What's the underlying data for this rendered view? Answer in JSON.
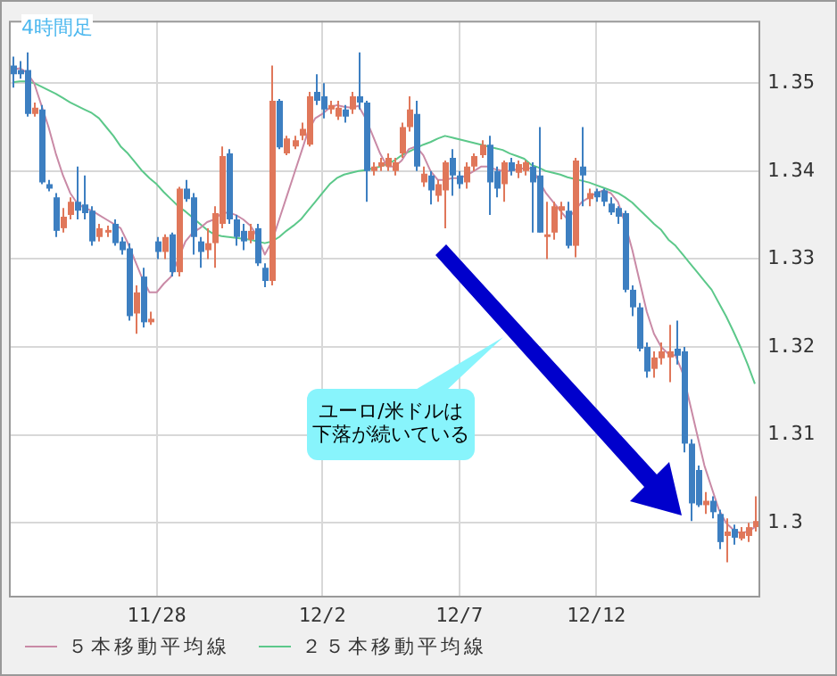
{
  "chart_data": {
    "type": "candlestick",
    "title": "4時間足",
    "categories": [
      null,
      null,
      null,
      null,
      null,
      null,
      null,
      null,
      null,
      null,
      null,
      null,
      null,
      null,
      null,
      null,
      null,
      null,
      null,
      null,
      "11/28",
      null,
      null,
      null,
      null,
      null,
      null,
      null,
      null,
      null,
      null,
      null,
      null,
      null,
      null,
      null,
      null,
      null,
      null,
      null,
      null,
      null,
      null,
      "12/2",
      null,
      null,
      null,
      null,
      null,
      null,
      null,
      null,
      null,
      null,
      null,
      null,
      null,
      null,
      null,
      null,
      null,
      null,
      "12/7",
      null,
      null,
      null,
      null,
      null,
      null,
      null,
      null,
      null,
      null,
      null,
      null,
      null,
      null,
      null,
      null,
      null,
      null,
      "12/12",
      null,
      null,
      null,
      null,
      null,
      null,
      null,
      null,
      null,
      null,
      null,
      null,
      null,
      null,
      null,
      null,
      null,
      null,
      null,
      null,
      null,
      null
    ],
    "ohlc": [
      [
        1.352,
        1.353,
        1.3495,
        1.351
      ],
      [
        1.3515,
        1.3525,
        1.3505,
        1.351
      ],
      [
        1.3515,
        1.3535,
        1.3462,
        1.3465
      ],
      [
        1.3465,
        1.3478,
        1.3462,
        1.3472
      ],
      [
        1.347,
        1.3475,
        1.3385,
        1.3387
      ],
      [
        1.3385,
        1.339,
        1.3377,
        1.338
      ],
      [
        1.337,
        1.3375,
        1.3325,
        1.3332
      ],
      [
        1.3335,
        1.3358,
        1.333,
        1.3348
      ],
      [
        1.335,
        1.337,
        1.3345,
        1.3365
      ],
      [
        1.3365,
        1.3405,
        1.3345,
        1.3355
      ],
      [
        1.3362,
        1.3395,
        1.3345,
        1.3352
      ],
      [
        1.3355,
        1.336,
        1.3315,
        1.332
      ],
      [
        1.3325,
        1.334,
        1.332,
        1.3335
      ],
      [
        1.333,
        1.3338,
        1.3325,
        1.3333
      ],
      [
        1.334,
        1.3345,
        1.3315,
        1.3318
      ],
      [
        1.332,
        1.3325,
        1.3305,
        1.331
      ],
      [
        1.3312,
        1.3318,
        1.323,
        1.3235
      ],
      [
        1.3238,
        1.327,
        1.3215,
        1.3262
      ],
      [
        1.328,
        1.329,
        1.3222,
        1.3228
      ],
      [
        1.3228,
        1.324,
        1.3225,
        1.3232
      ],
      [
        1.332,
        1.3325,
        1.33,
        1.3308
      ],
      [
        1.3308,
        1.3328,
        1.33,
        1.3325
      ],
      [
        1.3328,
        1.333,
        1.328,
        1.3285
      ],
      [
        1.3285,
        1.3382,
        1.328,
        1.338
      ],
      [
        1.338,
        1.339,
        1.3365,
        1.3368
      ],
      [
        1.337,
        1.3375,
        1.3305,
        1.3325
      ],
      [
        1.332,
        1.3325,
        1.329,
        1.3308
      ],
      [
        1.331,
        1.3335,
        1.33,
        1.3318
      ],
      [
        1.3318,
        1.336,
        1.329,
        1.3352
      ],
      [
        1.334,
        1.3428,
        1.3335,
        1.3417
      ],
      [
        1.342,
        1.3425,
        1.334,
        1.3345
      ],
      [
        1.3345,
        1.335,
        1.3315,
        1.3325
      ],
      [
        1.3332,
        1.334,
        1.331,
        1.332
      ],
      [
        1.3322,
        1.334,
        1.3318,
        1.3332
      ],
      [
        1.3335,
        1.334,
        1.3292,
        1.3295
      ],
      [
        1.329,
        1.3295,
        1.3268,
        1.3275
      ],
      [
        1.3275,
        1.352,
        1.327,
        1.348
      ],
      [
        1.348,
        1.3482,
        1.3425,
        1.3427
      ],
      [
        1.342,
        1.344,
        1.3418,
        1.3437
      ],
      [
        1.3428,
        1.344,
        1.3425,
        1.3435
      ],
      [
        1.344,
        1.3455,
        1.3435,
        1.3448
      ],
      [
        1.343,
        1.349,
        1.3428,
        1.3485
      ],
      [
        1.349,
        1.351,
        1.3475,
        1.348
      ],
      [
        1.3485,
        1.35,
        1.346,
        1.347
      ],
      [
        1.347,
        1.348,
        1.3465,
        1.3475
      ],
      [
        1.3462,
        1.348,
        1.3458,
        1.3472
      ],
      [
        1.347,
        1.3475,
        1.3455,
        1.3462
      ],
      [
        1.347,
        1.349,
        1.3465,
        1.3485
      ],
      [
        1.3485,
        1.3535,
        1.347,
        1.3478
      ],
      [
        1.3478,
        1.348,
        1.3365,
        1.34
      ],
      [
        1.34,
        1.341,
        1.3395,
        1.3405
      ],
      [
        1.3405,
        1.3415,
        1.34,
        1.341
      ],
      [
        1.3405,
        1.342,
        1.34,
        1.3415
      ],
      [
        1.34,
        1.3415,
        1.3395,
        1.341
      ],
      [
        1.342,
        1.3455,
        1.3415,
        1.345
      ],
      [
        1.345,
        1.3485,
        1.3445,
        1.347
      ],
      [
        1.3465,
        1.348,
        1.34,
        1.3405
      ],
      [
        1.3387,
        1.3405,
        1.3382,
        1.3397
      ],
      [
        1.3395,
        1.34,
        1.3362,
        1.3378
      ],
      [
        1.3372,
        1.339,
        1.3365,
        1.3385
      ],
      [
        1.3378,
        1.3412,
        1.3335,
        1.341
      ],
      [
        1.3415,
        1.3425,
        1.3372,
        1.3395
      ],
      [
        1.3395,
        1.34,
        1.338,
        1.3385
      ],
      [
        1.3387,
        1.341,
        1.338,
        1.3405
      ],
      [
        1.3405,
        1.342,
        1.34,
        1.3417
      ],
      [
        1.3418,
        1.3435,
        1.3415,
        1.343
      ],
      [
        1.343,
        1.344,
        1.335,
        1.3387
      ],
      [
        1.34,
        1.3405,
        1.337,
        1.338
      ],
      [
        1.3385,
        1.3412,
        1.3365,
        1.341
      ],
      [
        1.341,
        1.3415,
        1.3395,
        1.34
      ],
      [
        1.3398,
        1.3412,
        1.3392,
        1.3408
      ],
      [
        1.34,
        1.3412,
        1.3395,
        1.341
      ],
      [
        1.3405,
        1.341,
        1.333,
        1.3387
      ],
      [
        1.3395,
        1.345,
        1.333,
        1.333
      ],
      [
        1.3325,
        1.3365,
        1.33,
        1.3328
      ],
      [
        1.333,
        1.3365,
        1.3322,
        1.336
      ],
      [
        1.3355,
        1.3365,
        1.3345,
        1.336
      ],
      [
        1.3355,
        1.3365,
        1.3312,
        1.3315
      ],
      [
        1.3315,
        1.3415,
        1.3302,
        1.3412
      ],
      [
        1.3405,
        1.345,
        1.336,
        1.3395
      ],
      [
        1.3368,
        1.338,
        1.336,
        1.3375
      ],
      [
        1.3377,
        1.338,
        1.3365,
        1.337
      ],
      [
        1.3378,
        1.338,
        1.336,
        1.3365
      ],
      [
        1.3363,
        1.337,
        1.335,
        1.3353
      ],
      [
        1.3358,
        1.336,
        1.334,
        1.3348
      ],
      [
        1.3352,
        1.3355,
        1.3262,
        1.3265
      ],
      [
        1.3265,
        1.327,
        1.3235,
        1.3245
      ],
      [
        1.3245,
        1.325,
        1.3195,
        1.3198
      ],
      [
        1.32,
        1.3205,
        1.3165,
        1.3172
      ],
      [
        1.3175,
        1.3195,
        1.3165,
        1.3188
      ],
      [
        1.3187,
        1.3205,
        1.318,
        1.3195
      ],
      [
        1.3188,
        1.3225,
        1.316,
        1.3195
      ],
      [
        1.3198,
        1.323,
        1.318,
        1.319
      ],
      [
        1.3195,
        1.32,
        1.308,
        1.309
      ],
      [
        1.309,
        1.3095,
        1.3002,
        1.3022
      ],
      [
        1.306,
        1.3065,
        1.3018,
        1.302
      ],
      [
        1.302,
        1.3035,
        1.301,
        1.3025
      ],
      [
        1.3025,
        1.303,
        1.3005,
        1.3012
      ],
      [
        1.301,
        1.3015,
        1.297,
        1.2978
      ],
      [
        1.2985,
        1.3005,
        1.2955,
        1.299
      ],
      [
        1.2993,
        1.2998,
        1.2975,
        1.2983
      ],
      [
        1.2982,
        1.2995,
        1.298,
        1.299
      ],
      [
        1.2985,
        1.3,
        1.2978,
        1.2995
      ],
      [
        1.2995,
        1.303,
        1.299,
        1.3002
      ]
    ],
    "colors": [
      "#3d7fc1",
      "#3d7fc1",
      "#3d7fc1",
      "#e0775a",
      "#3d7fc1",
      "#3d7fc1",
      "#3d7fc1",
      "#e0775a",
      "#e0775a",
      "#3d7fc1",
      "#3d7fc1",
      "#3d7fc1",
      "#e0775a",
      "#e0775a",
      "#3d7fc1",
      "#3d7fc1",
      "#3d7fc1",
      "#e0775a",
      "#3d7fc1",
      "#e0775a",
      "#3d7fc1",
      "#e0775a",
      "#3d7fc1",
      "#e0775a",
      "#3d7fc1",
      "#3d7fc1",
      "#3d7fc1",
      "#e0775a",
      "#e0775a",
      "#e0775a",
      "#3d7fc1",
      "#3d7fc1",
      "#3d7fc1",
      "#e0775a",
      "#3d7fc1",
      "#3d7fc1",
      "#e0775a",
      "#3d7fc1",
      "#e0775a",
      "#e0775a",
      "#e0775a",
      "#e0775a",
      "#3d7fc1",
      "#3d7fc1",
      "#e0775a",
      "#e0775a",
      "#3d7fc1",
      "#e0775a",
      "#3d7fc1",
      "#3d7fc1",
      "#e0775a",
      "#e0775a",
      "#e0775a",
      "#e0775a",
      "#e0775a",
      "#e0775a",
      "#3d7fc1",
      "#e0775a",
      "#3d7fc1",
      "#e0775a",
      "#e0775a",
      "#3d7fc1",
      "#3d7fc1",
      "#e0775a",
      "#e0775a",
      "#e0775a",
      "#3d7fc1",
      "#3d7fc1",
      "#e0775a",
      "#3d7fc1",
      "#e0775a",
      "#e0775a",
      "#3d7fc1",
      "#3d7fc1",
      "#e0775a",
      "#e0775a",
      "#e0775a",
      "#3d7fc1",
      "#e0775a",
      "#3d7fc1",
      "#e0775a",
      "#3d7fc1",
      "#3d7fc1",
      "#3d7fc1",
      "#3d7fc1",
      "#3d7fc1",
      "#3d7fc1",
      "#3d7fc1",
      "#3d7fc1",
      "#e0775a",
      "#e0775a",
      "#e0775a",
      "#3d7fc1",
      "#3d7fc1",
      "#3d7fc1",
      "#3d7fc1",
      "#e0775a",
      "#3d7fc1",
      "#3d7fc1",
      "#e0775a",
      "#3d7fc1",
      "#e0775a",
      "#e0775a",
      "#e0775a"
    ],
    "series": [
      {
        "name": "５本移動平均線",
        "type": "line",
        "color": "#c98aa6",
        "values": [
          1.3515,
          1.3517,
          1.3512,
          1.35,
          1.3475,
          1.345,
          1.342,
          1.3395,
          1.3375,
          1.3363,
          1.3358,
          1.3355,
          1.335,
          1.3345,
          1.334,
          1.3335,
          1.3318,
          1.3298,
          1.3278,
          1.3262,
          1.3262,
          1.3272,
          1.328,
          1.33,
          1.332,
          1.333,
          1.3335,
          1.3342,
          1.3345,
          1.3352,
          1.3353,
          1.335,
          1.3345,
          1.3338,
          1.3325,
          1.3305,
          1.332,
          1.3345,
          1.337,
          1.3395,
          1.342,
          1.3445,
          1.346,
          1.3465,
          1.3472,
          1.3475,
          1.3473,
          1.3472,
          1.3474,
          1.346,
          1.344,
          1.342,
          1.3405,
          1.3405,
          1.3412,
          1.3425,
          1.3428,
          1.3418,
          1.34,
          1.339,
          1.339,
          1.3392,
          1.3392,
          1.3395,
          1.34,
          1.3405,
          1.3405,
          1.3402,
          1.34,
          1.34,
          1.3402,
          1.3403,
          1.3403,
          1.339,
          1.3375,
          1.3365,
          1.3355,
          1.3345,
          1.3355,
          1.3365,
          1.337,
          1.3375,
          1.3378,
          1.3375,
          1.3365,
          1.334,
          1.331,
          1.3275,
          1.324,
          1.3215,
          1.32,
          1.3192,
          1.319,
          1.317,
          1.3135,
          1.31,
          1.3065,
          1.304,
          1.3015,
          1.3,
          1.2992,
          1.2988,
          1.299,
          1.2995
        ]
      },
      {
        "name": "２５本移動平均線",
        "type": "line",
        "color": "#5cc88a",
        "values": [
          1.3501,
          1.3502,
          1.3502,
          1.35,
          1.3496,
          1.3492,
          1.3488,
          1.3483,
          1.3478,
          1.3474,
          1.347,
          1.3466,
          1.346,
          1.345,
          1.344,
          1.3428,
          1.342,
          1.341,
          1.34,
          1.3392,
          1.3385,
          1.3376,
          1.3368,
          1.336,
          1.3354,
          1.3347,
          1.334,
          1.3333,
          1.3328,
          1.3326,
          1.3325,
          1.3324,
          1.3323,
          1.3322,
          1.332,
          1.3318,
          1.332,
          1.3325,
          1.3332,
          1.3338,
          1.3345,
          1.3355,
          1.3365,
          1.3375,
          1.3385,
          1.3392,
          1.3396,
          1.3398,
          1.34,
          1.3401,
          1.3403,
          1.3405,
          1.3408,
          1.3412,
          1.3418,
          1.3422,
          1.3426,
          1.343,
          1.3433,
          1.3437,
          1.344,
          1.3438,
          1.3436,
          1.3434,
          1.3432,
          1.343,
          1.3428,
          1.3426,
          1.3424,
          1.342,
          1.3417,
          1.3414,
          1.3407,
          1.3404,
          1.34,
          1.3398,
          1.3396,
          1.3393,
          1.3391,
          1.3389,
          1.3387,
          1.3384,
          1.3381,
          1.3378,
          1.3375,
          1.337,
          1.3364,
          1.3356,
          1.3348,
          1.334,
          1.3333,
          1.3322,
          1.3315,
          1.3305,
          1.3295,
          1.3285,
          1.3275,
          1.3265,
          1.325,
          1.3235,
          1.3218,
          1.32,
          1.318,
          1.3158
        ]
      }
    ],
    "ylim": [
      1.2917,
      1.3571
    ],
    "yticks": [
      1.3,
      1.31,
      1.32,
      1.33,
      1.34,
      1.35
    ],
    "grid": true,
    "legend": "bottom",
    "annotations": [
      "ユーロ/米ドルは下落が続いている"
    ]
  }
}
